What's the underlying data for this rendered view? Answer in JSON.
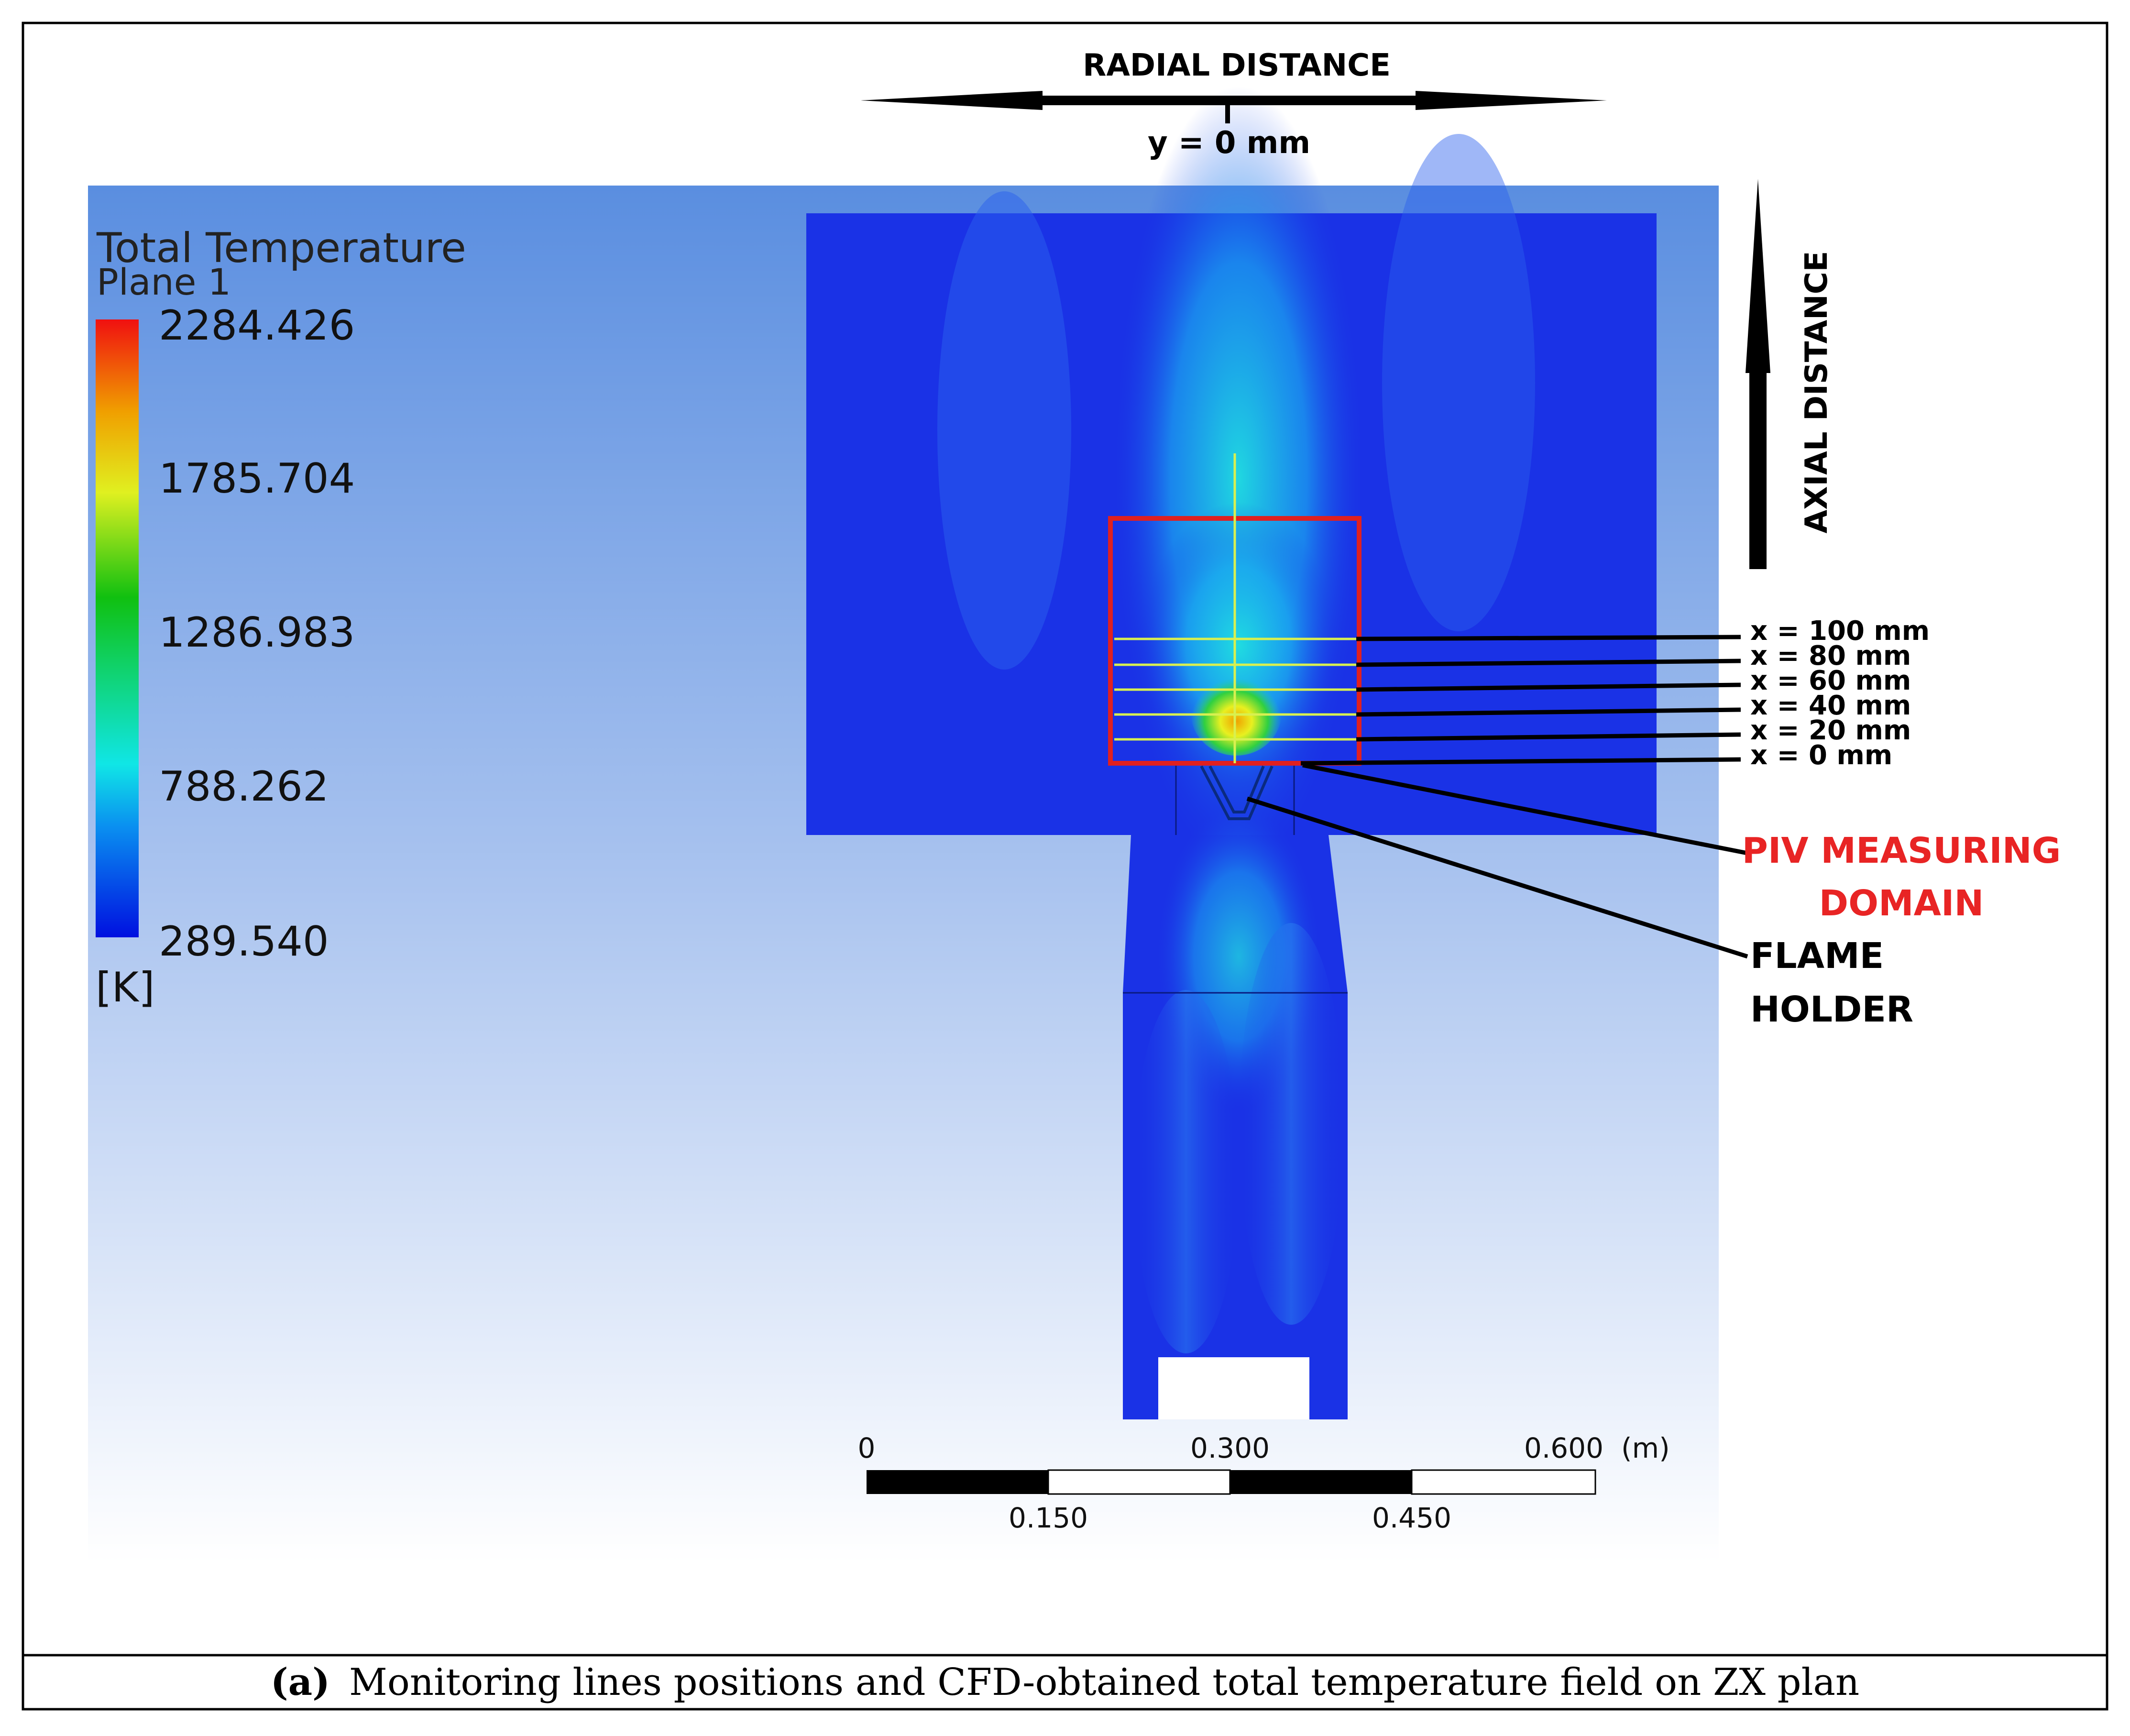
{
  "colors": {
    "frame": "#000000",
    "domain_box": "#e02020",
    "piv_label": "#e82424",
    "monitor_line": "#d8f050",
    "background_top": "#5a8ee0",
    "background_bottom": "#ffffff",
    "cold_fluid": "#1a32e6",
    "hot_core": "#f0a000"
  },
  "legend": {
    "title": "Total Temperature",
    "subtitle": "Plane 1",
    "values": [
      "2284.426",
      "1785.704",
      "1286.983",
      "788.262",
      "289.540"
    ],
    "unit": "[K]"
  },
  "radial_arrow": {
    "label": "RADIAL DISTANCE",
    "origin_label": "y = 0 mm"
  },
  "axial_arrow": {
    "label": "AXIAL DISTANCE"
  },
  "monitor_lines": [
    "x = 100 mm",
    "x = 80 mm",
    "x = 60 mm",
    "x = 40 mm",
    "x = 20 mm",
    "x = 0 mm"
  ],
  "callouts": {
    "piv_line1": "PIV MEASURING",
    "piv_line2": "DOMAIN",
    "flame_line1": "FLAME",
    "flame_line2": "HOLDER"
  },
  "scale": {
    "top_labels": [
      "0",
      "0.300",
      "0.600"
    ],
    "bottom_labels": [
      "0.150",
      "0.450"
    ],
    "unit": "(m)"
  },
  "caption": {
    "tag": "(a)",
    "text": "Monitoring lines positions and CFD-obtained total temperature field on ZX plan"
  }
}
